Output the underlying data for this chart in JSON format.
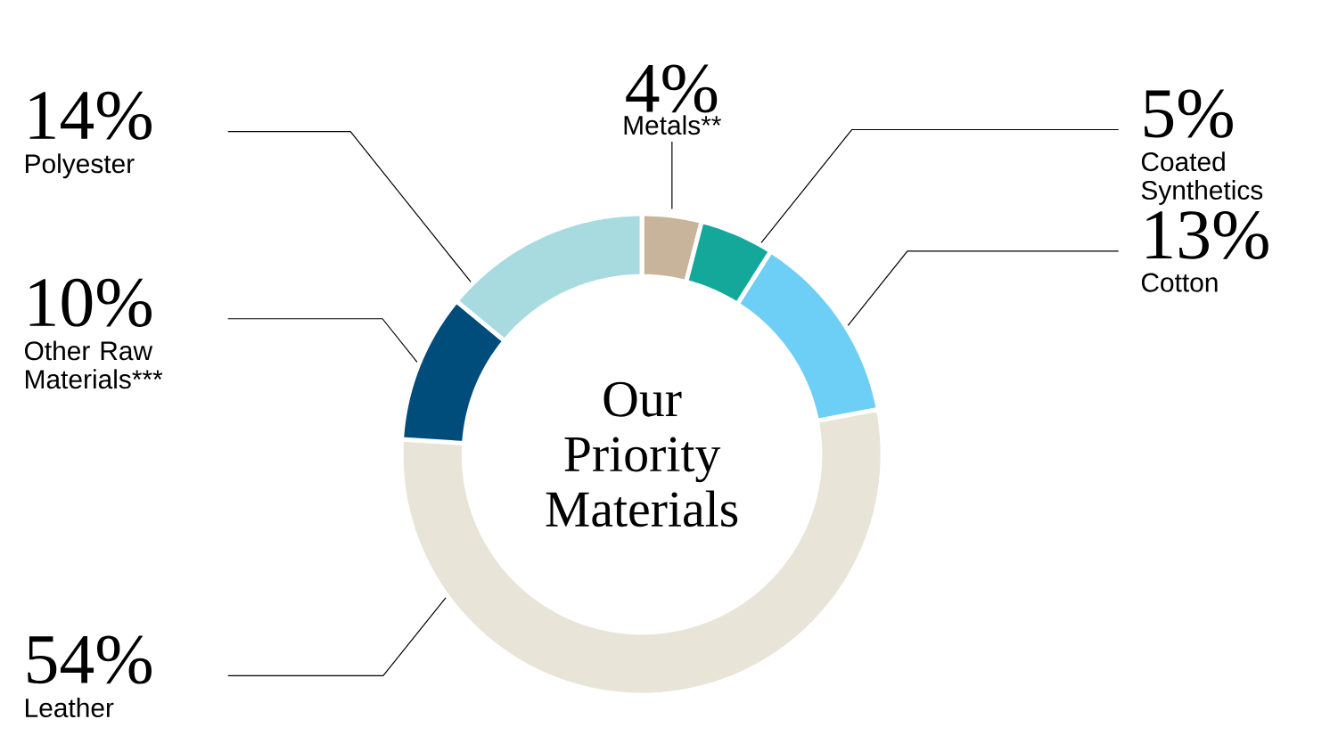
{
  "chart_data": {
    "type": "donut",
    "title": "Our Priority Materials",
    "categories": [
      "Metals**",
      "Coated Synthetics",
      "Cotton",
      "Leather",
      "Other Raw Materials***",
      "Polyester"
    ],
    "values": [
      4,
      5,
      13,
      54,
      10,
      14
    ],
    "value_labels": [
      "4%",
      "5%",
      "13%",
      "54%",
      "10%",
      "14%"
    ],
    "colors": [
      "#c8b49b",
      "#14a89b",
      "#6ecff6",
      "#e8e4d8",
      "#004c7b",
      "#a8dbe0"
    ]
  }
}
